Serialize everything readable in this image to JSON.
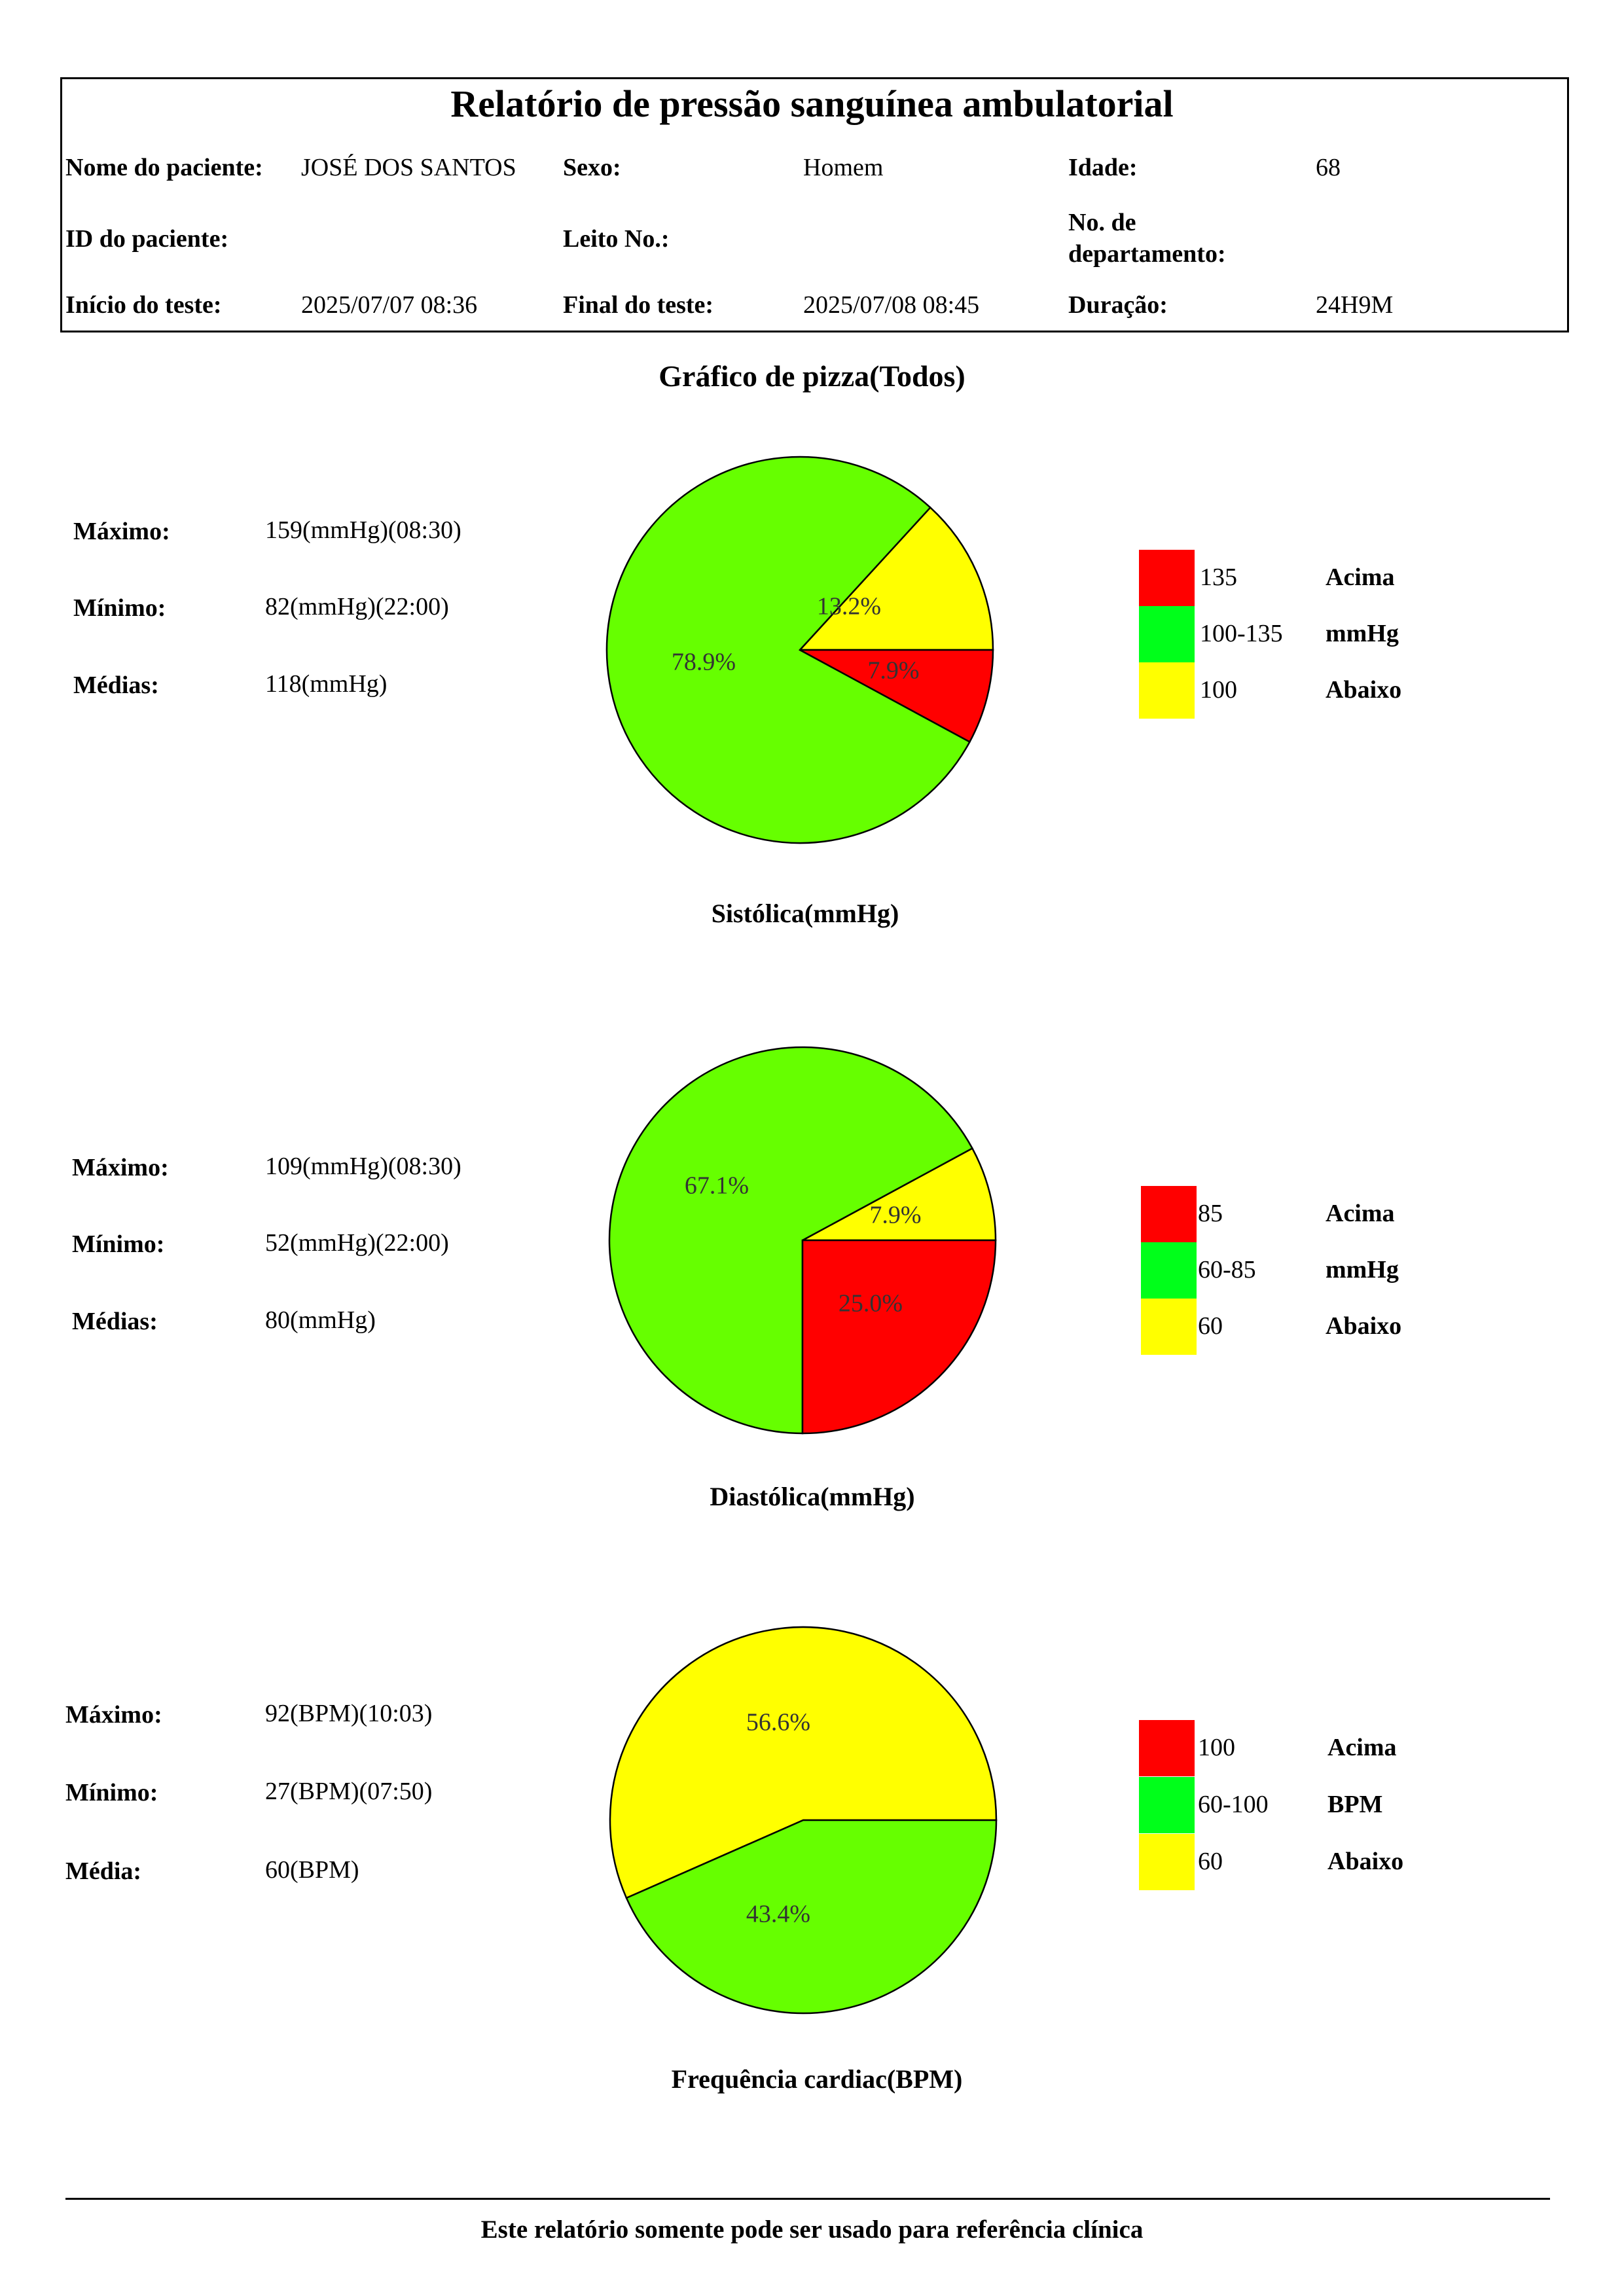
{
  "report": {
    "title": "Relatório de pressão sanguínea ambulatorial",
    "patient_name_label": "Nome do paciente:",
    "patient_name": "JOSÉ DOS SANTOS",
    "sex_label": "Sexo:",
    "sex": "Homem",
    "age_label": "Idade:",
    "age": "68",
    "patient_id_label": "ID do paciente:",
    "patient_id": "",
    "bed_label": "Leito No.:",
    "bed": "",
    "department_label_1": "No. de",
    "department_label_2": "departamento:",
    "department": "",
    "start_label": "Início do teste:",
    "start": "2025/07/07 08:36",
    "end_label": "Final do teste:",
    "end": "2025/07/08 08:45",
    "duration_label": "Duração:",
    "duration": "24H9M"
  },
  "section_title": "Gráfico de pizza(Todos)",
  "colors": {
    "red": "#ff0000",
    "green": "#66ff00",
    "legend_green": "#00ff1a",
    "yellow": "#ffff00"
  },
  "systolic": {
    "max_label": "Máximo:",
    "max": "159(mmHg)(08:30)",
    "min_label": "Mínimo:",
    "min": "82(mmHg)(22:00)",
    "avg_label": "Médias:",
    "avg": "118(mmHg)",
    "legend": [
      {
        "range": "135",
        "label": "Acima",
        "color": "#ff0000"
      },
      {
        "range": "100-135",
        "label": "mmHg",
        "color": "#00ff1a"
      },
      {
        "range": "100",
        "label": "Abaixo",
        "color": "#ffff00"
      }
    ]
  },
  "diastolic": {
    "max_label": "Máximo:",
    "max": "109(mmHg)(08:30)",
    "min_label": "Mínimo:",
    "min": "52(mmHg)(22:00)",
    "avg_label": "Médias:",
    "avg": "80(mmHg)",
    "legend": [
      {
        "range": "85",
        "label": "Acima",
        "color": "#ff0000"
      },
      {
        "range": "60-85",
        "label": "mmHg",
        "color": "#00ff1a"
      },
      {
        "range": "60",
        "label": "Abaixo",
        "color": "#ffff00"
      }
    ]
  },
  "heart_rate": {
    "max_label": "Máximo:",
    "max": "92(BPM)(10:03)",
    "min_label": "Mínimo:",
    "min": "27(BPM)(07:50)",
    "avg_label": "Média:",
    "avg": "60(BPM)",
    "legend": [
      {
        "range": "100",
        "label": "Acima",
        "color": "#ff0000"
      },
      {
        "range": "60-100",
        "label": "BPM",
        "color": "#00ff1a"
      },
      {
        "range": "60",
        "label": "Abaixo",
        "color": "#ffff00"
      }
    ]
  },
  "chart_data": [
    {
      "type": "pie",
      "title": "Sistólica(mmHg)",
      "slices": [
        {
          "label": "13.2%",
          "value": 13.2,
          "color": "#ffff00"
        },
        {
          "label": "78.9%",
          "value": 78.9,
          "color": "#66ff00"
        },
        {
          "label": "7.9%",
          "value": 7.9,
          "color": "#ff0000"
        }
      ]
    },
    {
      "type": "pie",
      "title": "Diastólica(mmHg)",
      "slices": [
        {
          "label": "7.9%",
          "value": 7.9,
          "color": "#ffff00"
        },
        {
          "label": "67.1%",
          "value": 67.1,
          "color": "#66ff00"
        },
        {
          "label": "25.0%",
          "value": 25.0,
          "color": "#ff0000"
        }
      ]
    },
    {
      "type": "pie",
      "title": "Frequência cardiac(BPM)",
      "slices": [
        {
          "label": "0%",
          "value": 0,
          "color": "#ff0000"
        },
        {
          "label": "56.6%",
          "value": 56.6,
          "color": "#ffff00"
        },
        {
          "label": "43.4%",
          "value": 43.4,
          "color": "#66ff00"
        }
      ]
    }
  ],
  "footer": "Este relatório somente pode ser usado para referência clínica"
}
